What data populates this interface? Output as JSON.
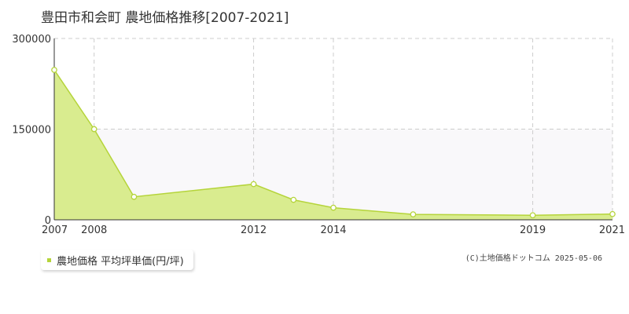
{
  "title": "豊田市和会町 農地価格推移[2007-2021]",
  "chart_data": {
    "type": "area",
    "title": "豊田市和会町 農地価格推移[2007-2021]",
    "x": [
      2007,
      2008,
      2009,
      2012,
      2013,
      2014,
      2016,
      2019,
      2021
    ],
    "series": [
      {
        "name": "農地価格 平均坪単価(円/坪)",
        "values": [
          248000,
          150000,
          38000,
          59000,
          33000,
          20000,
          9000,
          7500,
          9500
        ]
      }
    ],
    "x_tick_labels": [
      "2007",
      "2008",
      "2012",
      "2014",
      "2019",
      "2021"
    ],
    "x_ticks": [
      2007,
      2008,
      2012,
      2014,
      2019,
      2021
    ],
    "y_tick_labels": [
      "0",
      "150000",
      "300000"
    ],
    "y_ticks": [
      0,
      150000,
      300000
    ],
    "xlim": [
      2007,
      2021
    ],
    "ylim": [
      0,
      300000
    ],
    "grid": true,
    "legend_position": "bottom-left",
    "colors": {
      "fill": "#d9ec8f",
      "line": "#b5d43a",
      "band": "#f9f8fa",
      "grid": "#cccccc"
    }
  },
  "legend": {
    "label": "農地価格 平均坪単価(円/坪)"
  },
  "credit": "(C)土地価格ドットコム 2025-05-06"
}
